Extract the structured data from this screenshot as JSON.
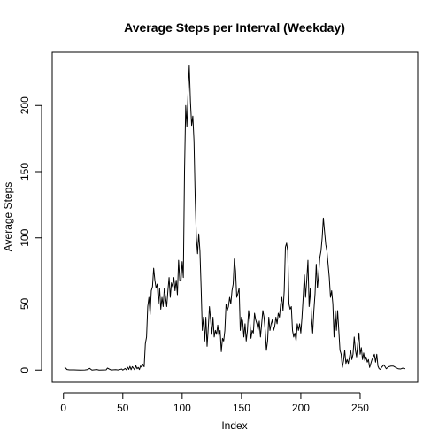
{
  "chart_data": {
    "type": "line",
    "title": "Average Steps per Interval (Weekday)",
    "xlabel": "Index",
    "ylabel": "Average Steps",
    "xlim": [
      -9.5,
      298.5
    ],
    "ylim": [
      -9.2,
      240.3
    ],
    "xticks": [
      0,
      50,
      100,
      150,
      200,
      250
    ],
    "yticks": [
      0,
      50,
      100,
      150,
      200
    ],
    "grid": false,
    "legend": "none",
    "series": [
      {
        "color": "#000000",
        "anchors": [
          [
            1,
            2.3
          ],
          [
            3,
            0.4
          ],
          [
            5,
            0.2
          ],
          [
            8,
            0.2
          ],
          [
            9,
            0.2
          ],
          [
            11,
            0.1
          ],
          [
            14,
            0
          ],
          [
            18,
            0.1
          ],
          [
            20,
            0.3
          ],
          [
            22,
            1.3
          ],
          [
            24,
            0
          ],
          [
            28,
            0.4
          ],
          [
            30,
            0
          ],
          [
            33,
            0.1
          ],
          [
            36,
            0.2
          ],
          [
            37,
            1.5
          ],
          [
            40,
            0.1
          ],
          [
            44,
            0.3
          ],
          [
            46,
            0.1
          ],
          [
            49,
            0.8
          ],
          [
            50,
            0
          ],
          [
            52,
            1.2
          ],
          [
            53,
            0.2
          ],
          [
            54,
            2.2
          ],
          [
            55,
            0.5
          ],
          [
            56,
            2.8
          ],
          [
            57,
            0.3
          ],
          [
            58,
            2.6
          ],
          [
            60,
            0.2
          ],
          [
            61,
            3.3
          ],
          [
            62,
            1.0
          ],
          [
            63,
            2.0
          ],
          [
            64,
            0.4
          ],
          [
            65,
            3.2
          ],
          [
            66,
            2.0
          ],
          [
            67,
            4.5
          ],
          [
            68,
            2.5
          ],
          [
            69,
            20
          ],
          [
            70,
            25
          ],
          [
            71,
            48
          ],
          [
            72,
            55
          ],
          [
            73,
            42
          ],
          [
            74,
            60
          ],
          [
            75,
            63
          ],
          [
            76,
            77
          ],
          [
            77,
            68
          ],
          [
            78,
            62
          ],
          [
            79,
            65
          ],
          [
            80,
            50
          ],
          [
            81,
            62
          ],
          [
            82,
            46
          ],
          [
            83,
            55
          ],
          [
            84,
            48
          ],
          [
            85,
            62
          ],
          [
            86,
            55
          ],
          [
            87,
            48
          ],
          [
            88,
            60
          ],
          [
            89,
            70
          ],
          [
            90,
            55
          ],
          [
            91,
            66
          ],
          [
            92,
            63
          ],
          [
            93,
            70
          ],
          [
            94,
            60
          ],
          [
            95,
            68
          ],
          [
            96,
            57
          ],
          [
            97,
            83
          ],
          [
            98,
            68
          ],
          [
            99,
            67
          ],
          [
            100,
            82
          ],
          [
            101,
            70
          ],
          [
            102,
            150
          ],
          [
            103,
            200
          ],
          [
            104,
            184
          ],
          [
            105,
            210
          ],
          [
            106,
            230
          ],
          [
            107,
            203
          ],
          [
            108,
            185
          ],
          [
            109,
            192
          ],
          [
            110,
            173
          ],
          [
            111,
            130
          ],
          [
            112,
            100
          ],
          [
            113,
            88
          ],
          [
            114,
            103
          ],
          [
            115,
            90
          ],
          [
            116,
            62
          ],
          [
            117,
            30
          ],
          [
            118,
            40
          ],
          [
            119,
            22
          ],
          [
            120,
            40
          ],
          [
            121,
            18
          ],
          [
            122,
            32
          ],
          [
            123,
            48
          ],
          [
            124,
            38
          ],
          [
            125,
            27
          ],
          [
            126,
            40
          ],
          [
            127,
            25
          ],
          [
            128,
            30
          ],
          [
            129,
            27
          ],
          [
            130,
            34
          ],
          [
            131,
            26
          ],
          [
            132,
            30
          ],
          [
            133,
            14
          ],
          [
            134,
            24
          ],
          [
            135,
            22
          ],
          [
            136,
            30
          ],
          [
            137,
            50
          ],
          [
            138,
            45
          ],
          [
            139,
            48
          ],
          [
            140,
            55
          ],
          [
            141,
            50
          ],
          [
            142,
            60
          ],
          [
            143,
            65
          ],
          [
            144,
            84
          ],
          [
            145,
            75
          ],
          [
            146,
            55
          ],
          [
            147,
            58
          ],
          [
            148,
            62
          ],
          [
            149,
            30
          ],
          [
            150,
            40
          ],
          [
            151,
            37
          ],
          [
            152,
            25
          ],
          [
            153,
            35
          ],
          [
            154,
            22
          ],
          [
            155,
            30
          ],
          [
            156,
            45
          ],
          [
            157,
            38
          ],
          [
            158,
            24
          ],
          [
            159,
            30
          ],
          [
            160,
            28
          ],
          [
            161,
            43
          ],
          [
            162,
            38
          ],
          [
            163,
            35
          ],
          [
            164,
            30
          ],
          [
            165,
            37
          ],
          [
            166,
            25
          ],
          [
            167,
            35
          ],
          [
            168,
            45
          ],
          [
            169,
            40
          ],
          [
            170,
            30
          ],
          [
            171,
            15
          ],
          [
            172,
            22
          ],
          [
            173,
            40
          ],
          [
            174,
            30
          ],
          [
            175,
            35
          ],
          [
            176,
            38
          ],
          [
            177,
            30
          ],
          [
            178,
            33
          ],
          [
            179,
            40
          ],
          [
            180,
            35
          ],
          [
            181,
            43
          ],
          [
            182,
            40
          ],
          [
            183,
            50
          ],
          [
            184,
            55
          ],
          [
            185,
            45
          ],
          [
            186,
            60
          ],
          [
            187,
            93
          ],
          [
            188,
            96
          ],
          [
            189,
            90
          ],
          [
            190,
            50
          ],
          [
            191,
            46
          ],
          [
            192,
            48
          ],
          [
            193,
            30
          ],
          [
            194,
            25
          ],
          [
            195,
            28
          ],
          [
            196,
            22
          ],
          [
            197,
            35
          ],
          [
            198,
            30
          ],
          [
            199,
            35
          ],
          [
            200,
            28
          ],
          [
            201,
            40
          ],
          [
            202,
            55
          ],
          [
            203,
            72
          ],
          [
            204,
            55
          ],
          [
            205,
            68
          ],
          [
            206,
            83
          ],
          [
            207,
            48
          ],
          [
            208,
            62
          ],
          [
            209,
            40
          ],
          [
            210,
            28
          ],
          [
            211,
            45
          ],
          [
            212,
            58
          ],
          [
            213,
            80
          ],
          [
            214,
            62
          ],
          [
            215,
            72
          ],
          [
            216,
            85
          ],
          [
            217,
            90
          ],
          [
            218,
            100
          ],
          [
            219,
            115
          ],
          [
            220,
            105
          ],
          [
            221,
            95
          ],
          [
            222,
            90
          ],
          [
            223,
            80
          ],
          [
            224,
            70
          ],
          [
            225,
            55
          ],
          [
            226,
            60
          ],
          [
            227,
            50
          ],
          [
            228,
            25
          ],
          [
            229,
            45
          ],
          [
            230,
            30
          ],
          [
            231,
            45
          ],
          [
            232,
            30
          ],
          [
            233,
            15
          ],
          [
            234,
            12
          ],
          [
            235,
            2
          ],
          [
            236,
            7
          ],
          [
            237,
            15
          ],
          [
            238,
            5
          ],
          [
            239,
            8
          ],
          [
            240,
            5
          ],
          [
            241,
            10
          ],
          [
            242,
            15
          ],
          [
            243,
            8
          ],
          [
            244,
            12
          ],
          [
            245,
            25
          ],
          [
            246,
            15
          ],
          [
            247,
            10
          ],
          [
            248,
            20
          ],
          [
            249,
            28
          ],
          [
            250,
            12
          ],
          [
            251,
            17
          ],
          [
            252,
            8
          ],
          [
            253,
            13
          ],
          [
            254,
            7
          ],
          [
            255,
            10
          ],
          [
            256,
            6
          ],
          [
            257,
            8
          ],
          [
            258,
            2
          ],
          [
            259,
            5
          ],
          [
            260,
            8
          ],
          [
            261,
            10
          ],
          [
            262,
            12
          ],
          [
            263,
            6
          ],
          [
            264,
            12
          ],
          [
            265,
            3
          ],
          [
            266,
            1
          ],
          [
            267,
            0.5
          ],
          [
            268,
            2
          ],
          [
            269,
            3
          ],
          [
            270,
            4
          ],
          [
            272,
            1
          ],
          [
            274,
            2.5
          ],
          [
            276,
            3
          ],
          [
            278,
            3
          ],
          [
            280,
            2
          ],
          [
            282,
            1
          ],
          [
            284,
            0.8
          ],
          [
            286,
            1.5
          ],
          [
            287,
            1
          ],
          [
            288,
            1.2
          ]
        ]
      }
    ]
  }
}
